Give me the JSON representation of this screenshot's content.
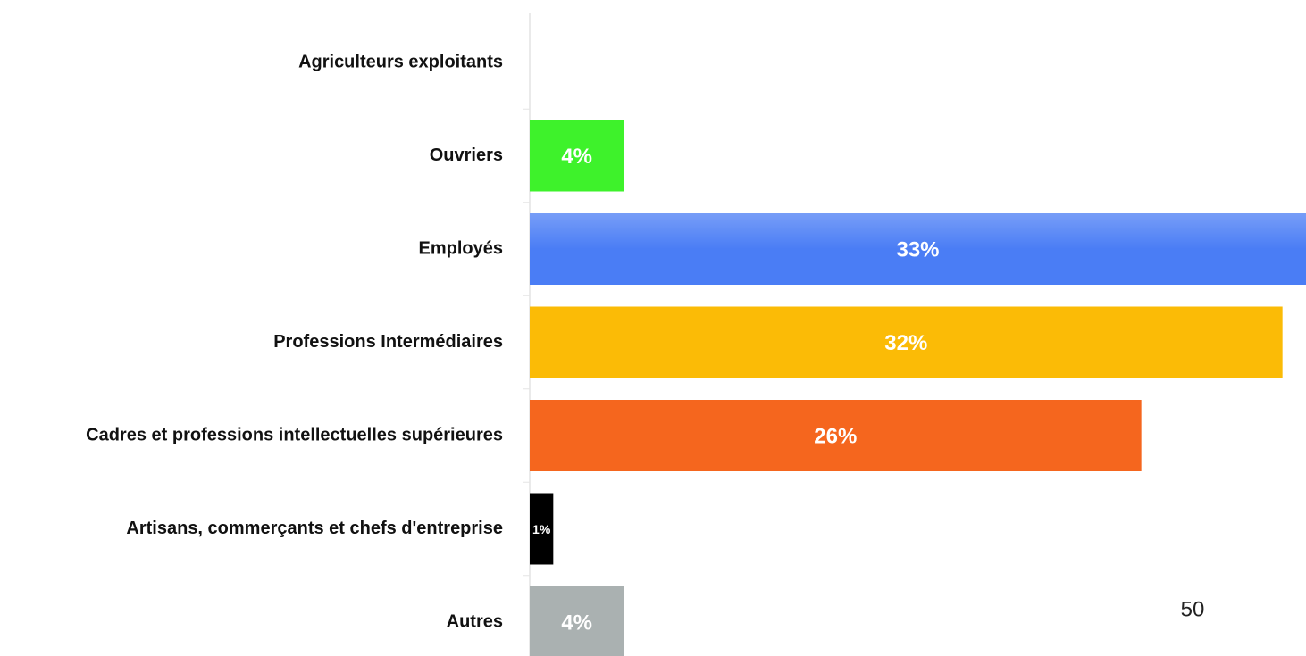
{
  "chart_data": {
    "type": "hbar",
    "categories": [
      "Agriculteurs exploitants",
      "Ouvriers",
      "Employés",
      "Professions Intermédiaires",
      "Cadres et professions intellectuelles supérieures",
      "Artisans, commerçants et chefs d'entreprise",
      "Autres"
    ],
    "values": [
      0,
      4,
      33,
      32,
      26,
      1,
      4
    ],
    "value_labels": [
      null,
      "4%",
      "33%",
      "32%",
      "26%",
      "1%",
      "4%"
    ],
    "colors": [
      "#ffffff",
      "#3ef22b",
      "#4a7df5",
      "#fbbb06",
      "#f5661e",
      "#000000",
      "#aab1b1"
    ],
    "xlim": [
      0,
      33
    ]
  },
  "page_number": "50"
}
